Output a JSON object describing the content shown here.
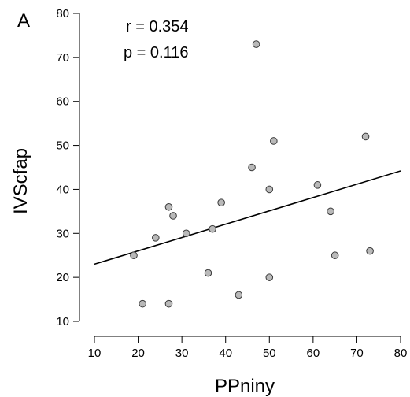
{
  "panel_label": "A",
  "stats": {
    "r": "r = 0.354",
    "p": "p = 0.116"
  },
  "colors": {
    "point_fill": "#b9b9b9",
    "point_stroke": "#3a3a3a",
    "line": "#000000"
  },
  "chart_data": {
    "type": "scatter",
    "title": "",
    "xlabel": "PPniny",
    "ylabel": "IVScfap",
    "xlim": [
      10,
      80
    ],
    "ylim": [
      10,
      80
    ],
    "xticks": [
      10,
      20,
      30,
      40,
      50,
      60,
      70,
      80
    ],
    "yticks": [
      10,
      20,
      30,
      40,
      50,
      60,
      70,
      80
    ],
    "grid": false,
    "points": [
      {
        "x": 19,
        "y": 25
      },
      {
        "x": 21,
        "y": 14
      },
      {
        "x": 24,
        "y": 29
      },
      {
        "x": 27,
        "y": 36
      },
      {
        "x": 27,
        "y": 14
      },
      {
        "x": 28,
        "y": 34
      },
      {
        "x": 31,
        "y": 30
      },
      {
        "x": 36,
        "y": 21
      },
      {
        "x": 37,
        "y": 31
      },
      {
        "x": 39,
        "y": 37
      },
      {
        "x": 43,
        "y": 16
      },
      {
        "x": 46,
        "y": 45
      },
      {
        "x": 47,
        "y": 73
      },
      {
        "x": 50,
        "y": 40
      },
      {
        "x": 50,
        "y": 20
      },
      {
        "x": 51,
        "y": 51
      },
      {
        "x": 61,
        "y": 41
      },
      {
        "x": 64,
        "y": 35
      },
      {
        "x": 65,
        "y": 25
      },
      {
        "x": 72,
        "y": 52
      },
      {
        "x": 73,
        "y": 26
      }
    ],
    "regression_line": {
      "x": [
        10,
        80
      ],
      "y": [
        23.0,
        44.2
      ]
    }
  }
}
